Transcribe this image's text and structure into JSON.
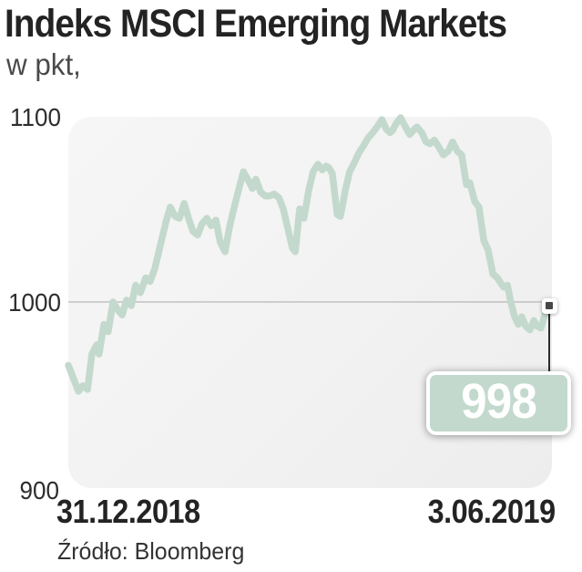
{
  "header": {
    "title": "Indeks MSCI Emerging Markets",
    "subtitle": "w pkt,"
  },
  "source_label": "Źródło: Bloomberg",
  "colors": {
    "line": "#c3d9cd",
    "callout_fill": "#c3d9cd",
    "plot_background": "#f3f3f3",
    "gridline": "#b7b7b7",
    "connector": "#2b2b2b",
    "marker_inner": "#474747",
    "title_text": "#232323",
    "callout_text": "#ffffff"
  },
  "chart_data": {
    "type": "line",
    "title": "Indeks MSCI Emerging Markets",
    "ylabel": "w pkt,",
    "y_axis": {
      "ticks": [
        "1100",
        "1000",
        "900"
      ],
      "range": [
        900,
        1100
      ],
      "gridline_at": 1000,
      "grid": "single-line"
    },
    "x_axis": {
      "start_label": "31.12.2018",
      "end_label": "3.06.2019"
    },
    "legend": "none",
    "last_value_label": "998",
    "series_name": "MSCI Emerging Markets",
    "points": [
      [
        0.0,
        966
      ],
      [
        0.009,
        960
      ],
      [
        0.021,
        952
      ],
      [
        0.03,
        955
      ],
      [
        0.04,
        953
      ],
      [
        0.049,
        972
      ],
      [
        0.059,
        977
      ],
      [
        0.064,
        972
      ],
      [
        0.074,
        988
      ],
      [
        0.083,
        984
      ],
      [
        0.093,
        1000
      ],
      [
        0.102,
        996
      ],
      [
        0.112,
        993
      ],
      [
        0.121,
        1001
      ],
      [
        0.131,
        998
      ],
      [
        0.14,
        1009
      ],
      [
        0.15,
        1005
      ],
      [
        0.161,
        1013
      ],
      [
        0.17,
        1011
      ],
      [
        0.18,
        1018
      ],
      [
        0.191,
        1030
      ],
      [
        0.203,
        1043
      ],
      [
        0.212,
        1051
      ],
      [
        0.222,
        1046
      ],
      [
        0.231,
        1045
      ],
      [
        0.241,
        1053
      ],
      [
        0.25,
        1045
      ],
      [
        0.259,
        1038
      ],
      [
        0.269,
        1036
      ],
      [
        0.278,
        1042
      ],
      [
        0.288,
        1045
      ],
      [
        0.297,
        1041
      ],
      [
        0.307,
        1044
      ],
      [
        0.316,
        1032
      ],
      [
        0.326,
        1027
      ],
      [
        0.335,
        1040
      ],
      [
        0.345,
        1051
      ],
      [
        0.354,
        1060
      ],
      [
        0.364,
        1070
      ],
      [
        0.373,
        1066
      ],
      [
        0.383,
        1061
      ],
      [
        0.39,
        1066
      ],
      [
        0.4,
        1059
      ],
      [
        0.409,
        1057
      ],
      [
        0.419,
        1057
      ],
      [
        0.428,
        1058
      ],
      [
        0.438,
        1056
      ],
      [
        0.447,
        1050
      ],
      [
        0.456,
        1040
      ],
      [
        0.466,
        1029
      ],
      [
        0.472,
        1027
      ],
      [
        0.481,
        1050
      ],
      [
        0.49,
        1045
      ],
      [
        0.5,
        1060
      ],
      [
        0.509,
        1070
      ],
      [
        0.519,
        1074
      ],
      [
        0.528,
        1071
      ],
      [
        0.536,
        1073
      ],
      [
        0.542,
        1072
      ],
      [
        0.549,
        1069
      ],
      [
        0.559,
        1047
      ],
      [
        0.566,
        1046
      ],
      [
        0.576,
        1060
      ],
      [
        0.585,
        1070
      ],
      [
        0.595,
        1075
      ],
      [
        0.604,
        1080
      ],
      [
        0.614,
        1084
      ],
      [
        0.623,
        1088
      ],
      [
        0.633,
        1091
      ],
      [
        0.642,
        1094
      ],
      [
        0.652,
        1098
      ],
      [
        0.661,
        1093
      ],
      [
        0.669,
        1091
      ],
      [
        0.674,
        1092
      ],
      [
        0.682,
        1096
      ],
      [
        0.691,
        1099
      ],
      [
        0.701,
        1094
      ],
      [
        0.71,
        1090
      ],
      [
        0.72,
        1093
      ],
      [
        0.725,
        1094
      ],
      [
        0.735,
        1091
      ],
      [
        0.744,
        1086
      ],
      [
        0.752,
        1085
      ],
      [
        0.761,
        1087
      ],
      [
        0.771,
        1083
      ],
      [
        0.78,
        1079
      ],
      [
        0.79,
        1081
      ],
      [
        0.799,
        1086
      ],
      [
        0.809,
        1081
      ],
      [
        0.818,
        1079
      ],
      [
        0.828,
        1063
      ],
      [
        0.835,
        1064
      ],
      [
        0.845,
        1054
      ],
      [
        0.854,
        1051
      ],
      [
        0.864,
        1033
      ],
      [
        0.873,
        1028
      ],
      [
        0.883,
        1015
      ],
      [
        0.892,
        1013
      ],
      [
        0.905,
        1008
      ],
      [
        0.913,
        1009
      ],
      [
        0.92,
        1000
      ],
      [
        0.928,
        992
      ],
      [
        0.936,
        988
      ],
      [
        0.943,
        992
      ],
      [
        0.951,
        987
      ],
      [
        0.96,
        985
      ],
      [
        0.968,
        990
      ],
      [
        0.975,
        987
      ],
      [
        0.983,
        986
      ],
      [
        0.991,
        993
      ],
      [
        1.0,
        998
      ]
    ]
  }
}
